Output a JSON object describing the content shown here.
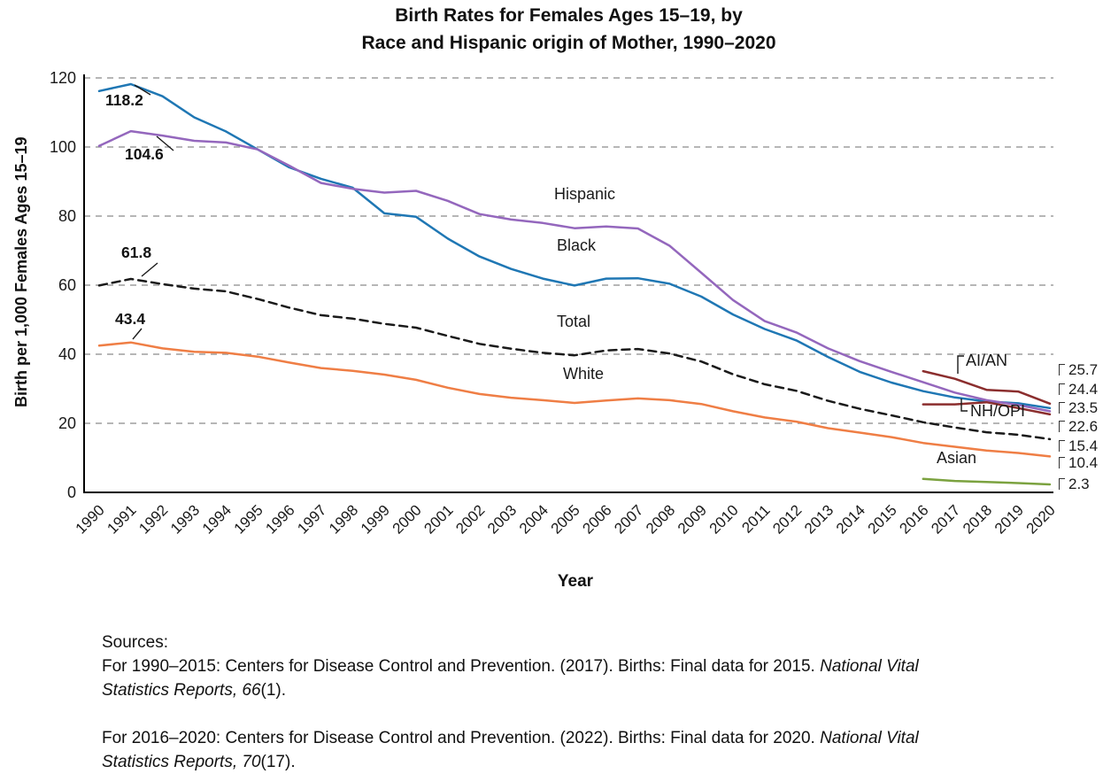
{
  "title": {
    "line1": "Birth Rates for Females Ages 15–19, by",
    "line2": "Race and Hispanic origin of Mother, 1990–2020"
  },
  "chart_data": {
    "type": "line",
    "title": "Birth Rates for Females Ages 15–19, by Race and Hispanic origin of Mother, 1990–2020",
    "xlabel": "Year",
    "ylabel": "Birth per 1,000 Females Ages 15–19",
    "ylim": [
      0,
      120
    ],
    "yticks": [
      0,
      20,
      40,
      60,
      80,
      100,
      120
    ],
    "grid": "horizontal-dashed",
    "legend": "inline-labels",
    "x": [
      1990,
      1991,
      1992,
      1993,
      1994,
      1995,
      1996,
      1997,
      1998,
      1999,
      2000,
      2001,
      2002,
      2003,
      2004,
      2005,
      2006,
      2007,
      2008,
      2009,
      2010,
      2011,
      2012,
      2013,
      2014,
      2015,
      2016,
      2017,
      2018,
      2019,
      2020
    ],
    "series": [
      {
        "name": "Black",
        "color": "#1F77B4",
        "style": "solid",
        "start_year": 1990,
        "values": [
          116.2,
          118.2,
          114.7,
          108.6,
          104.5,
          99.3,
          94.1,
          90.8,
          88.2,
          80.8,
          79.8,
          73.5,
          68.3,
          64.7,
          61.9,
          59.9,
          61.9,
          62.0,
          60.4,
          56.7,
          51.5,
          47.3,
          44.0,
          39.2,
          34.9,
          31.8,
          29.3,
          27.5,
          26.3,
          25.8,
          24.4
        ]
      },
      {
        "name": "Hispanic",
        "color": "#9467BD",
        "style": "solid",
        "start_year": 1990,
        "values": [
          100.3,
          104.6,
          103.3,
          101.8,
          101.3,
          99.3,
          94.6,
          89.6,
          87.9,
          86.8,
          87.3,
          84.4,
          80.6,
          79.0,
          78.0,
          76.5,
          77.0,
          76.4,
          71.4,
          63.6,
          55.7,
          49.6,
          46.3,
          41.7,
          38.0,
          34.9,
          31.9,
          28.9,
          26.7,
          25.3,
          23.5
        ]
      },
      {
        "name": "Total",
        "color": "#1A1A1A",
        "style": "dashed",
        "start_year": 1990,
        "values": [
          59.9,
          61.8,
          60.3,
          59.0,
          58.2,
          56.0,
          53.5,
          51.3,
          50.3,
          48.8,
          47.7,
          45.3,
          43.0,
          41.6,
          40.4,
          39.7,
          41.1,
          41.5,
          40.2,
          37.9,
          34.2,
          31.3,
          29.4,
          26.5,
          24.2,
          22.3,
          20.3,
          18.8,
          17.4,
          16.7,
          15.4
        ]
      },
      {
        "name": "White",
        "color": "#EF7E45",
        "style": "solid",
        "start_year": 1990,
        "values": [
          42.5,
          43.4,
          41.7,
          40.7,
          40.4,
          39.3,
          37.6,
          36.0,
          35.2,
          34.1,
          32.6,
          30.3,
          28.5,
          27.4,
          26.7,
          25.9,
          26.6,
          27.2,
          26.7,
          25.6,
          23.5,
          21.7,
          20.5,
          18.6,
          17.3,
          16.0,
          14.3,
          13.2,
          12.1,
          11.4,
          10.4
        ]
      },
      {
        "name": "AI/AN",
        "color": "#8B2E2E",
        "style": "solid",
        "start_year": 2016,
        "values": [
          35.1,
          32.9,
          29.7,
          29.2,
          25.7
        ]
      },
      {
        "name": "NH/OPI",
        "color": "#8B2E2E",
        "style": "solid",
        "start_year": 2016,
        "values": [
          25.5,
          25.5,
          26.1,
          24.4,
          22.6
        ]
      },
      {
        "name": "Asian",
        "color": "#7BA23F",
        "style": "solid",
        "start_year": 2016,
        "values": [
          3.9,
          3.3,
          3.0,
          2.7,
          2.3
        ]
      }
    ],
    "callouts": [
      {
        "text": "118.2",
        "series": "Black",
        "year": 1991
      },
      {
        "text": "104.6",
        "series": "Hispanic",
        "year": 1991
      },
      {
        "text": "61.8",
        "series": "Total",
        "year": 1991
      },
      {
        "text": "43.4",
        "series": "White",
        "year": 1991
      }
    ],
    "series_labels": [
      {
        "text": "Hispanic"
      },
      {
        "text": "Black"
      },
      {
        "text": "Total"
      },
      {
        "text": "White"
      },
      {
        "text": "AI/AN"
      },
      {
        "text": "NH/OPI"
      },
      {
        "text": "Asian"
      }
    ],
    "end_labels": [
      {
        "text": "25.7"
      },
      {
        "text": "24.4"
      },
      {
        "text": "23.5"
      },
      {
        "text": "22.6"
      },
      {
        "text": "15.4"
      },
      {
        "text": "10.4"
      },
      {
        "text": "2.3"
      }
    ]
  },
  "axis": {
    "x_title": "Year",
    "y_title": "Birth per 1,000 Females Ages 15–19"
  },
  "sources": {
    "heading": "Sources:",
    "paragraphs": [
      {
        "segments": [
          {
            "text": "For 1990–2015: Centers for Disease Control and Prevention. (2017). Births: Final data for 2015. ",
            "italic": false
          },
          {
            "text": "National Vital",
            "italic": true
          },
          {
            "break": true
          },
          {
            "text": "Statistics Reports, 66",
            "italic": true
          },
          {
            "text": "(1).",
            "italic": false
          }
        ]
      },
      {
        "segments": [
          {
            "text": "For 2016–2020: Centers for Disease Control and Prevention. (2022). Births: Final data for 2020. ",
            "italic": false
          },
          {
            "text": "National Vital",
            "italic": true
          },
          {
            "break": true
          },
          {
            "text": "Statistics Reports, 70",
            "italic": true
          },
          {
            "text": "(17).",
            "italic": false
          }
        ]
      }
    ]
  },
  "colors": {
    "black_series": "#1F77B4",
    "hispanic_series": "#9467BD",
    "total_series": "#1A1A1A",
    "white_series": "#EF7E45",
    "aian_nhopi_series": "#8B2E2E",
    "asian_series": "#7BA23F",
    "gridline": "#9E9E9E",
    "axis": "#000000"
  }
}
